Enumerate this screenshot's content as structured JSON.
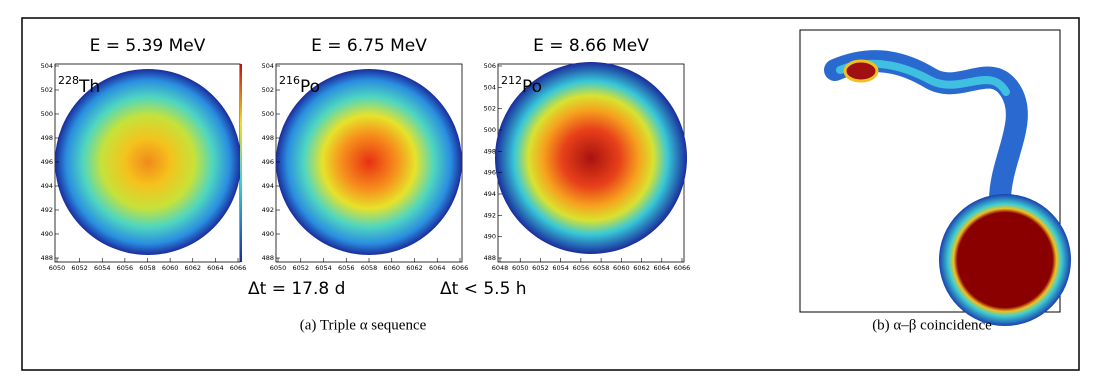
{
  "panel_a": {
    "plots": [
      {
        "energy": "E = 5.39 MeV",
        "mass": "228",
        "symbol": "Th",
        "y_ticks": [
          "488",
          "490",
          "492",
          "494",
          "496",
          "498",
          "500",
          "502",
          "504"
        ],
        "x_ticks": [
          "6050",
          "6052",
          "6054",
          "6056",
          "6058",
          "6060",
          "6062",
          "6064",
          "6066"
        ]
      },
      {
        "energy": "E = 6.75 MeV",
        "mass": "216",
        "symbol": "Po",
        "y_ticks": [
          "488",
          "490",
          "492",
          "494",
          "496",
          "498",
          "500",
          "502",
          "504"
        ],
        "x_ticks": [
          "6050",
          "6052",
          "6054",
          "6056",
          "6058",
          "6060",
          "6062",
          "6064",
          "6066"
        ]
      },
      {
        "energy": "E = 8.66 MeV",
        "mass": "212",
        "symbol": "Po",
        "y_ticks": [
          "488",
          "490",
          "492",
          "494",
          "496",
          "498",
          "500",
          "502",
          "504",
          "506"
        ],
        "x_ticks": [
          "6048",
          "6050",
          "6052",
          "6054",
          "6056",
          "6058",
          "6060",
          "6062",
          "6064",
          "6066"
        ]
      }
    ],
    "intervals": [
      "Δt = 17.8 d",
      "Δt < 5.5 h"
    ],
    "caption": "(a) Triple α sequence"
  },
  "panel_b": {
    "caption": "(b) α–β coincidence"
  }
}
